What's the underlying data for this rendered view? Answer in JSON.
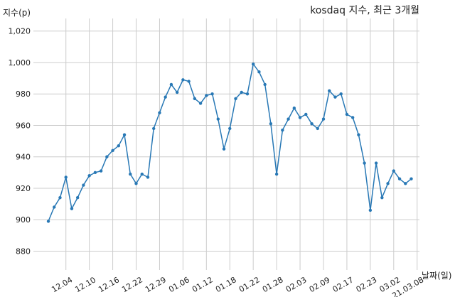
{
  "chart_data": {
    "type": "line",
    "title": "kosdaq 지수, 최근 3개월",
    "xlabel": "날짜(일)",
    "ylabel": "지수(p)",
    "ylim": [
      868,
      1028
    ],
    "yticks": [
      880,
      900,
      920,
      940,
      960,
      980,
      1000,
      1020
    ],
    "ytick_labels": [
      "880",
      "900",
      "920",
      "940",
      "960",
      "980",
      "1,000",
      "1,020"
    ],
    "xtick_labels": [
      "12.04",
      "12.10",
      "12.16",
      "12.22",
      "12.29",
      "01.06",
      "01.12",
      "01.18",
      "01.22",
      "01.28",
      "02.03",
      "02.09",
      "02.17",
      "02.23",
      "03.02",
      "21.03.08"
    ],
    "xtick_positions": [
      3,
      7,
      11,
      15,
      19,
      23,
      27,
      31,
      35,
      39,
      43,
      47,
      51,
      55,
      59,
      63
    ],
    "grid": true,
    "line_color": "#2878b5",
    "series": [
      {
        "values": [
          899,
          908,
          914,
          927,
          907,
          914,
          922,
          928,
          930,
          931,
          940,
          944,
          947,
          954,
          929,
          923,
          929,
          927,
          958,
          968,
          978,
          986,
          981,
          989,
          988,
          977,
          974,
          979,
          980,
          964,
          945,
          958,
          977,
          981,
          980,
          999,
          994,
          986,
          961,
          929,
          957,
          964,
          971,
          965,
          967,
          961,
          958,
          964,
          982,
          978,
          980,
          967,
          965,
          954,
          936,
          906,
          936,
          914,
          923,
          931,
          926,
          923,
          926
        ]
      }
    ]
  }
}
